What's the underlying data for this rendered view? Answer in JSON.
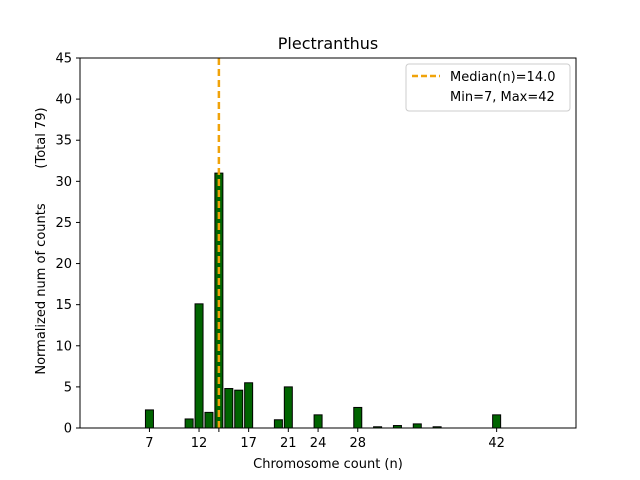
{
  "chart_data": {
    "type": "bar",
    "title": "Plectranthus",
    "xlabel": "Chromosome count (n)",
    "ylabel": "Normalized num of counts",
    "ylabel_total": "(Total 79)",
    "xlim": [
      0,
      50
    ],
    "ylim": [
      0,
      45
    ],
    "xticks": [
      7,
      12,
      14,
      17,
      21,
      24,
      28,
      42
    ],
    "xtick_labels": [
      "7",
      "12",
      "",
      "17",
      "21",
      "24",
      "28",
      "42"
    ],
    "yticks": [
      0,
      5,
      10,
      15,
      20,
      25,
      30,
      35,
      40,
      45
    ],
    "bar_color": "#006400",
    "bar_edge_color": "#000000",
    "bars": [
      {
        "x": 7,
        "value": 2.2
      },
      {
        "x": 11,
        "value": 1.1
      },
      {
        "x": 12,
        "value": 15.1
      },
      {
        "x": 13,
        "value": 1.9
      },
      {
        "x": 14,
        "value": 31.0
      },
      {
        "x": 15,
        "value": 4.8
      },
      {
        "x": 16,
        "value": 4.6
      },
      {
        "x": 17,
        "value": 5.5
      },
      {
        "x": 20,
        "value": 1.0
      },
      {
        "x": 21,
        "value": 5.0
      },
      {
        "x": 24,
        "value": 1.6
      },
      {
        "x": 28,
        "value": 2.5
      },
      {
        "x": 30,
        "value": 0.15
      },
      {
        "x": 32,
        "value": 0.3
      },
      {
        "x": 34,
        "value": 0.5
      },
      {
        "x": 36,
        "value": 0.15
      },
      {
        "x": 42,
        "value": 1.6
      }
    ],
    "median": 14.0,
    "median_color": "#f0a30a",
    "legend": {
      "position": "top-right",
      "entries": [
        "Median(n)=14.0",
        "Min=7, Max=42"
      ]
    }
  }
}
